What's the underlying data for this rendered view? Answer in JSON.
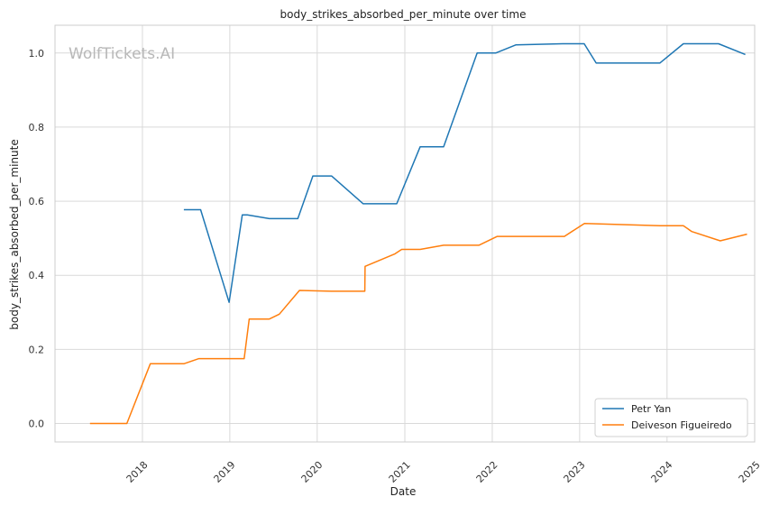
{
  "chart_data": {
    "type": "line",
    "title": "body_strikes_absorbed_per_minute over time",
    "xlabel": "Date",
    "ylabel": "body_strikes_absorbed_per_minute",
    "watermark": "WolfTickets.AI",
    "xlim": [
      "2017-01-01",
      "2025-01-01"
    ],
    "ylim": [
      -0.05,
      1.075
    ],
    "x_ticks": [
      "2018",
      "2019",
      "2020",
      "2021",
      "2022",
      "2023",
      "2024",
      "2025"
    ],
    "y_ticks": [
      "0.0",
      "0.2",
      "0.4",
      "0.6",
      "0.8",
      "1.0"
    ],
    "grid": true,
    "legend_position": "bottom-right",
    "series": [
      {
        "name": "Petr Yan",
        "color": "#1f77b4",
        "points": [
          [
            "2018-06-23",
            0.577
          ],
          [
            "2018-09-01",
            0.577
          ],
          [
            "2018-12-29",
            0.327
          ],
          [
            "2019-02-22",
            0.563
          ],
          [
            "2019-03-15",
            0.563
          ],
          [
            "2019-06-15",
            0.553
          ],
          [
            "2019-10-12",
            0.553
          ],
          [
            "2019-12-14",
            0.668
          ],
          [
            "2020-03-01",
            0.668
          ],
          [
            "2020-07-11",
            0.593
          ],
          [
            "2020-11-28",
            0.593
          ],
          [
            "2021-03-06",
            0.747
          ],
          [
            "2021-06-12",
            0.747
          ],
          [
            "2021-10-30",
            1.0
          ],
          [
            "2022-01-15",
            1.0
          ],
          [
            "2022-04-09",
            1.022
          ],
          [
            "2022-10-22",
            1.025
          ],
          [
            "2023-01-20",
            1.025
          ],
          [
            "2023-03-11",
            0.973
          ],
          [
            "2023-12-02",
            0.973
          ],
          [
            "2024-03-09",
            1.025
          ],
          [
            "2024-08-03",
            1.025
          ],
          [
            "2024-11-23",
            0.996
          ]
        ]
      },
      {
        "name": "Deiveson Figueiredo",
        "color": "#ff7f0e",
        "points": [
          [
            "2017-05-27",
            0.0
          ],
          [
            "2017-10-28",
            0.0
          ],
          [
            "2018-02-03",
            0.161
          ],
          [
            "2018-06-23",
            0.161
          ],
          [
            "2018-08-25",
            0.175
          ],
          [
            "2019-03-02",
            0.175
          ],
          [
            "2019-03-23",
            0.282
          ],
          [
            "2019-06-15",
            0.282
          ],
          [
            "2019-07-27",
            0.295
          ],
          [
            "2019-10-19",
            0.359
          ],
          [
            "2020-02-29",
            0.357
          ],
          [
            "2020-07-18",
            0.357
          ],
          [
            "2020-07-19",
            0.424
          ],
          [
            "2020-11-21",
            0.458
          ],
          [
            "2020-12-19",
            0.47
          ],
          [
            "2021-03-06",
            0.47
          ],
          [
            "2021-06-12",
            0.481
          ],
          [
            "2021-11-06",
            0.481
          ],
          [
            "2022-01-22",
            0.505
          ],
          [
            "2022-10-29",
            0.505
          ],
          [
            "2023-01-21",
            0.54
          ],
          [
            "2023-12-02",
            0.534
          ],
          [
            "2024-03-09",
            0.534
          ],
          [
            "2024-04-13",
            0.518
          ],
          [
            "2024-08-10",
            0.493
          ],
          [
            "2024-11-30",
            0.511
          ]
        ]
      }
    ]
  }
}
